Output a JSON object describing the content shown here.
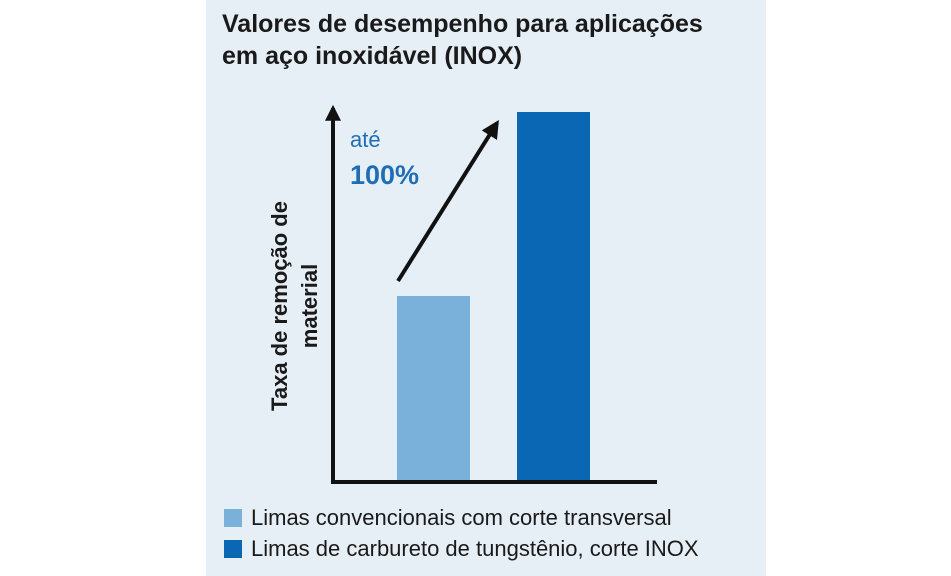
{
  "chart_data": {
    "type": "bar",
    "title_lines": [
      "Valores de desempenho para aplicações",
      "em aço inoxidável (INOX)"
    ],
    "ylabel": "Taxa de remoção de material",
    "categories": [
      "Limas convencionais com corte transversal",
      "Limas de carbureto de tungstênio, corte INOX"
    ],
    "values": [
      100,
      200
    ],
    "ylim": [
      0,
      220
    ],
    "grid": false,
    "legend_position": "bottom-left",
    "annotation": {
      "line1": "até",
      "line2": "100%"
    },
    "series": [
      {
        "name": "Limas convencionais com corte transversal",
        "color": "#7ab1da"
      },
      {
        "name": "Limas de carbureto de tungstênio, corte INOX",
        "color": "#0a67b4"
      }
    ],
    "colors": {
      "axis": "#111111",
      "panel": "#e6eef6",
      "annotation": "#1f6eb5"
    }
  }
}
